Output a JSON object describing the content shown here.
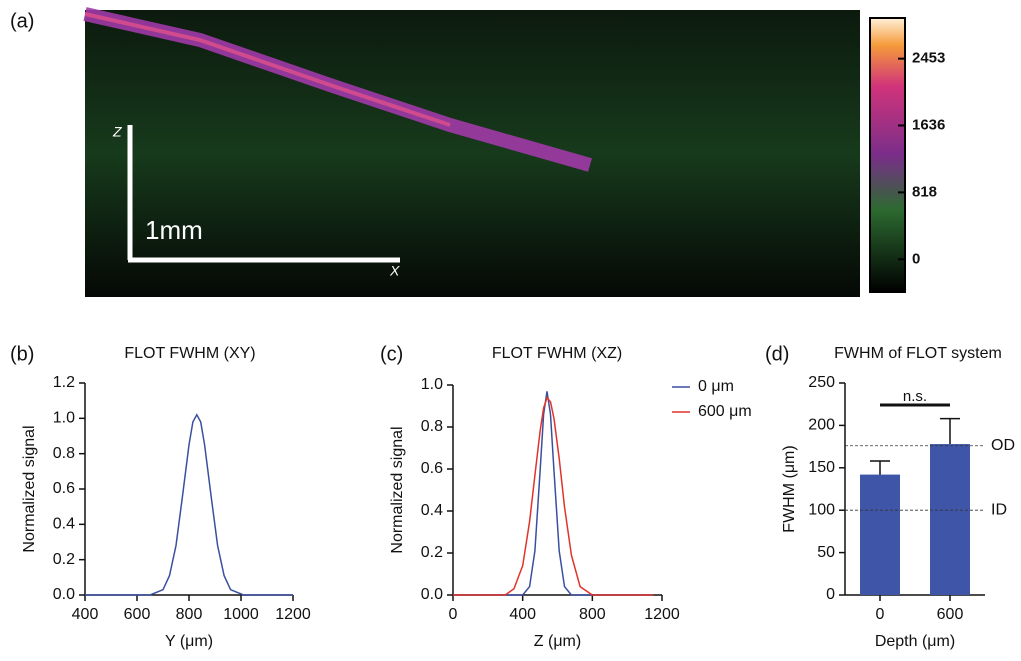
{
  "chart_data": [
    {
      "type": "image",
      "panel_label": "(a)",
      "scale_bar_label": "1mm",
      "axis_labels": [
        "Z",
        "X"
      ],
      "colorbar_lim": [
        -400,
        2950
      ],
      "colorbar_ticks": [
        0,
        818,
        1636,
        2453
      ]
    },
    {
      "type": "line",
      "panel_label": "(b)",
      "title": "FLOT FWHM (XY)",
      "x_label": "Y (μm)",
      "y_label": "Normalized signal",
      "x": [
        400,
        650,
        700,
        725,
        750,
        775,
        800,
        815,
        830,
        845,
        860,
        885,
        910,
        935,
        960,
        1010,
        1200
      ],
      "series": [
        {
          "color": "#3a4fa0",
          "values": [
            0,
            0,
            0.03,
            0.11,
            0.28,
            0.56,
            0.85,
            0.98,
            1.02,
            0.98,
            0.85,
            0.56,
            0.28,
            0.11,
            0.03,
            0,
            0
          ]
        }
      ],
      "xlim": [
        400,
        1200
      ],
      "xticks": [
        400,
        600,
        800,
        1000,
        1200
      ],
      "ylim": [
        0,
        1.2
      ],
      "yticks": [
        {
          "value": 0,
          "label": "0.0"
        },
        0.2,
        0.4,
        0.6,
        0.8,
        {
          "value": 1,
          "label": "1.0"
        },
        1.2
      ]
    },
    {
      "type": "line",
      "panel_label": "(c)",
      "title": "FLOT FWHM (XZ)",
      "x_label": "Z (μm)",
      "y_label": "Normalized signal",
      "x": [
        0,
        300,
        350,
        400,
        440,
        470,
        500,
        520,
        540,
        560,
        580,
        610,
        640,
        680,
        730,
        800,
        1150
      ],
      "series": [
        {
          "name": "0 μm",
          "color": "#3a4fa0",
          "values": [
            0,
            0,
            0,
            0,
            0.04,
            0.21,
            0.59,
            0.86,
            0.97,
            0.86,
            0.59,
            0.21,
            0.04,
            0,
            0,
            0,
            0
          ]
        },
        {
          "name": "600 μm",
          "color": "#e0332a",
          "values": [
            0,
            0,
            0.03,
            0.14,
            0.35,
            0.57,
            0.78,
            0.89,
            0.94,
            0.92,
            0.84,
            0.65,
            0.42,
            0.19,
            0.04,
            0,
            0
          ]
        }
      ],
      "xlim": [
        0,
        1200
      ],
      "xticks": [
        0,
        400,
        800,
        1200
      ],
      "ylim": [
        0,
        1
      ],
      "yticks": [
        {
          "value": 0,
          "label": "0.0"
        },
        0.2,
        0.4,
        0.6,
        0.8,
        {
          "value": 1,
          "label": "1.0"
        }
      ]
    },
    {
      "type": "bar",
      "panel_label": "(d)",
      "title": "FWHM of FLOT system",
      "x_label": "Depth (μm)",
      "y_label": "FWHM (μm)",
      "categories": [
        "0",
        "600"
      ],
      "values": [
        142,
        178
      ],
      "errors": [
        16,
        30
      ],
      "color": "#3f56a8",
      "ylim": [
        0,
        250
      ],
      "yticks": [
        0,
        50,
        100,
        150,
        200,
        250
      ],
      "reference_lines": [
        {
          "value": 176,
          "label": "OD"
        },
        {
          "value": 100,
          "label": "ID"
        }
      ],
      "annotation": "n.s."
    }
  ]
}
